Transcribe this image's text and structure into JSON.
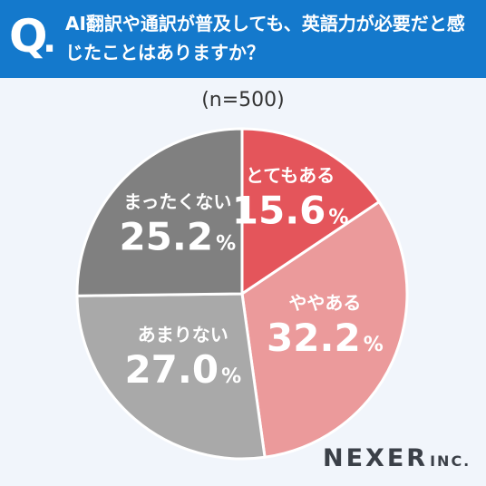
{
  "header": {
    "q_label": "Q",
    "q_dot": ".",
    "question": "AI翻訳や通訳が普及しても、英語力が必要だと感じたことはありますか？",
    "bg_color": "#1479cc"
  },
  "sample_label": "(n=500)",
  "brand": {
    "name": "NEXER",
    "suffix": "INC."
  },
  "chart_data": {
    "type": "pie",
    "title": "AI翻訳や通訳が普及しても、英語力が必要だと感じたことはありますか？",
    "n_label": "(n=500)",
    "start": "12 o'clock",
    "direction": "clockwise",
    "slices": [
      {
        "label": "とてもある",
        "value": 15.6,
        "display": "15.6",
        "unit": "%",
        "color": "#e4555b"
      },
      {
        "label": "ややある",
        "value": 32.2,
        "display": "32.2",
        "unit": "%",
        "color": "#eb9a9b"
      },
      {
        "label": "あまりない",
        "value": 27.0,
        "display": "27.0",
        "unit": "%",
        "color": "#a9a9a9"
      },
      {
        "label": "まったくない",
        "value": 25.2,
        "display": "25.2",
        "unit": "%",
        "color": "#808080"
      }
    ]
  }
}
